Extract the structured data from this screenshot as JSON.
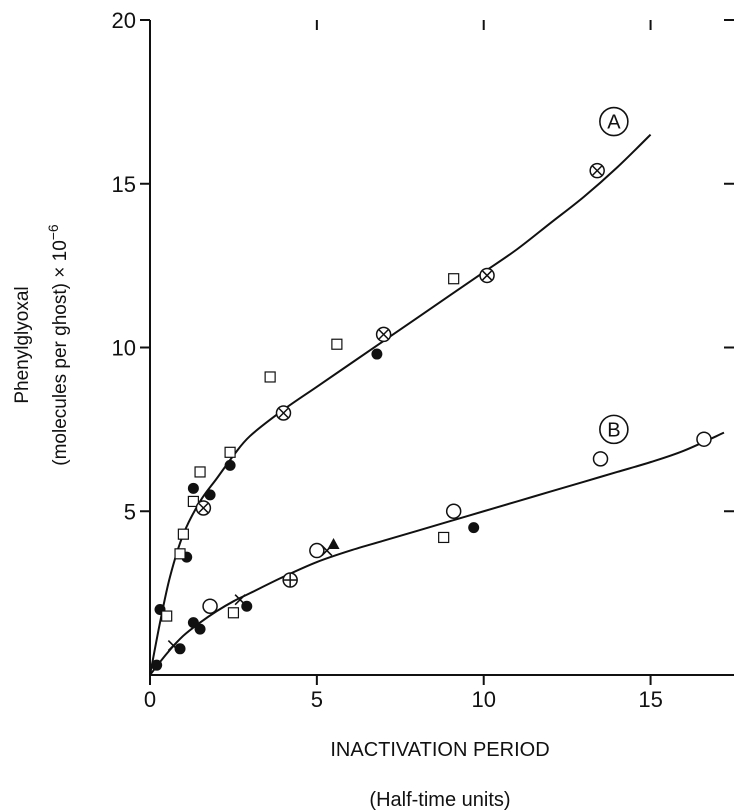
{
  "chart_data": {
    "type": "scatter",
    "title": "",
    "xlabel": "INACTIVATION PERIOD",
    "xlabel_sub": "(Half-time units)",
    "ylabel_line1": "Phenylglyoxal",
    "ylabel_line2": "(molecules per ghost) × 10",
    "ylabel_exp": "−6",
    "xlim": [
      0,
      17.5
    ],
    "ylim": [
      0,
      20
    ],
    "x_ticks": [
      0,
      5,
      10,
      15
    ],
    "x_tick_labels": [
      "0",
      "5",
      "10",
      "15"
    ],
    "y_ticks": [
      5,
      10,
      15,
      20
    ],
    "y_tick_labels": [
      "5",
      "10",
      "15",
      "20"
    ],
    "grid": false,
    "legend": "none",
    "curves": [
      {
        "name": "A",
        "x": [
          0,
          0.3,
          0.6,
          1.0,
          1.5,
          2.0,
          2.5,
          3.0,
          4.0,
          5.0,
          6.0,
          7.0,
          8.0,
          9.0,
          10.0,
          11.0,
          12.0,
          13.0,
          14.0,
          15.0
        ],
        "y": [
          0,
          1.6,
          3.0,
          4.3,
          5.3,
          6.0,
          6.7,
          7.3,
          8.1,
          8.8,
          9.5,
          10.2,
          10.9,
          11.6,
          12.3,
          13.0,
          13.8,
          14.6,
          15.5,
          16.5
        ]
      },
      {
        "name": "B",
        "x": [
          0,
          0.5,
          1.0,
          1.5,
          2.0,
          2.5,
          3.0,
          4.0,
          5.0,
          6.0,
          7.0,
          8.0,
          9.0,
          10.0,
          11.0,
          12.0,
          13.0,
          14.0,
          15.0,
          16.0,
          17.2
        ],
        "y": [
          0,
          0.65,
          1.2,
          1.6,
          1.95,
          2.25,
          2.5,
          3.0,
          3.45,
          3.8,
          4.1,
          4.4,
          4.7,
          5.0,
          5.3,
          5.6,
          5.9,
          6.2,
          6.5,
          6.85,
          7.4
        ]
      }
    ],
    "points": [
      {
        "m": "filled-circle",
        "x": 0.2,
        "y": 0.3
      },
      {
        "m": "filled-circle",
        "x": 0.3,
        "y": 2.0
      },
      {
        "m": "filled-circle",
        "x": 0.9,
        "y": 0.8
      },
      {
        "m": "filled-circle",
        "x": 1.1,
        "y": 3.6
      },
      {
        "m": "filled-circle",
        "x": 1.3,
        "y": 1.6
      },
      {
        "m": "filled-circle",
        "x": 1.5,
        "y": 1.4
      },
      {
        "m": "filled-circle",
        "x": 1.3,
        "y": 5.7
      },
      {
        "m": "filled-circle",
        "x": 1.8,
        "y": 5.5
      },
      {
        "m": "filled-circle",
        "x": 2.4,
        "y": 6.4
      },
      {
        "m": "filled-circle",
        "x": 2.9,
        "y": 2.1
      },
      {
        "m": "filled-circle",
        "x": 6.8,
        "y": 9.8
      },
      {
        "m": "filled-circle",
        "x": 9.7,
        "y": 4.5
      },
      {
        "m": "open-square",
        "x": 0.5,
        "y": 1.8
      },
      {
        "m": "open-square",
        "x": 0.9,
        "y": 3.7
      },
      {
        "m": "open-square",
        "x": 1.0,
        "y": 4.3
      },
      {
        "m": "open-square",
        "x": 1.3,
        "y": 5.3
      },
      {
        "m": "open-square",
        "x": 1.5,
        "y": 6.2
      },
      {
        "m": "open-square",
        "x": 2.4,
        "y": 6.8
      },
      {
        "m": "open-square",
        "x": 2.5,
        "y": 1.9
      },
      {
        "m": "open-square",
        "x": 3.6,
        "y": 9.1
      },
      {
        "m": "open-square",
        "x": 5.6,
        "y": 10.1
      },
      {
        "m": "open-square",
        "x": 8.8,
        "y": 4.2
      },
      {
        "m": "open-square",
        "x": 9.1,
        "y": 12.1
      },
      {
        "m": "open-circle",
        "x": 1.8,
        "y": 2.1
      },
      {
        "m": "open-circle",
        "x": 5.0,
        "y": 3.8
      },
      {
        "m": "open-circle",
        "x": 9.1,
        "y": 5.0
      },
      {
        "m": "open-circle",
        "x": 13.5,
        "y": 6.6
      },
      {
        "m": "open-circle",
        "x": 16.6,
        "y": 7.2
      },
      {
        "m": "circle-x",
        "x": 1.6,
        "y": 5.1
      },
      {
        "m": "circle-x",
        "x": 4.0,
        "y": 8.0
      },
      {
        "m": "circle-x",
        "x": 7.0,
        "y": 10.4
      },
      {
        "m": "circle-x",
        "x": 10.1,
        "y": 12.2
      },
      {
        "m": "circle-x",
        "x": 13.4,
        "y": 15.4
      },
      {
        "m": "circle-plus",
        "x": 4.2,
        "y": 2.9
      },
      {
        "m": "cross",
        "x": 0.7,
        "y": 0.9
      },
      {
        "m": "cross",
        "x": 2.7,
        "y": 2.3
      },
      {
        "m": "cross",
        "x": 5.3,
        "y": 3.8
      },
      {
        "m": "filled-triangle",
        "x": 5.5,
        "y": 4.0
      }
    ],
    "annotations": [
      {
        "text": "A",
        "x": 13.9,
        "y": 16.9
      },
      {
        "text": "B",
        "x": 13.9,
        "y": 7.5
      }
    ]
  }
}
